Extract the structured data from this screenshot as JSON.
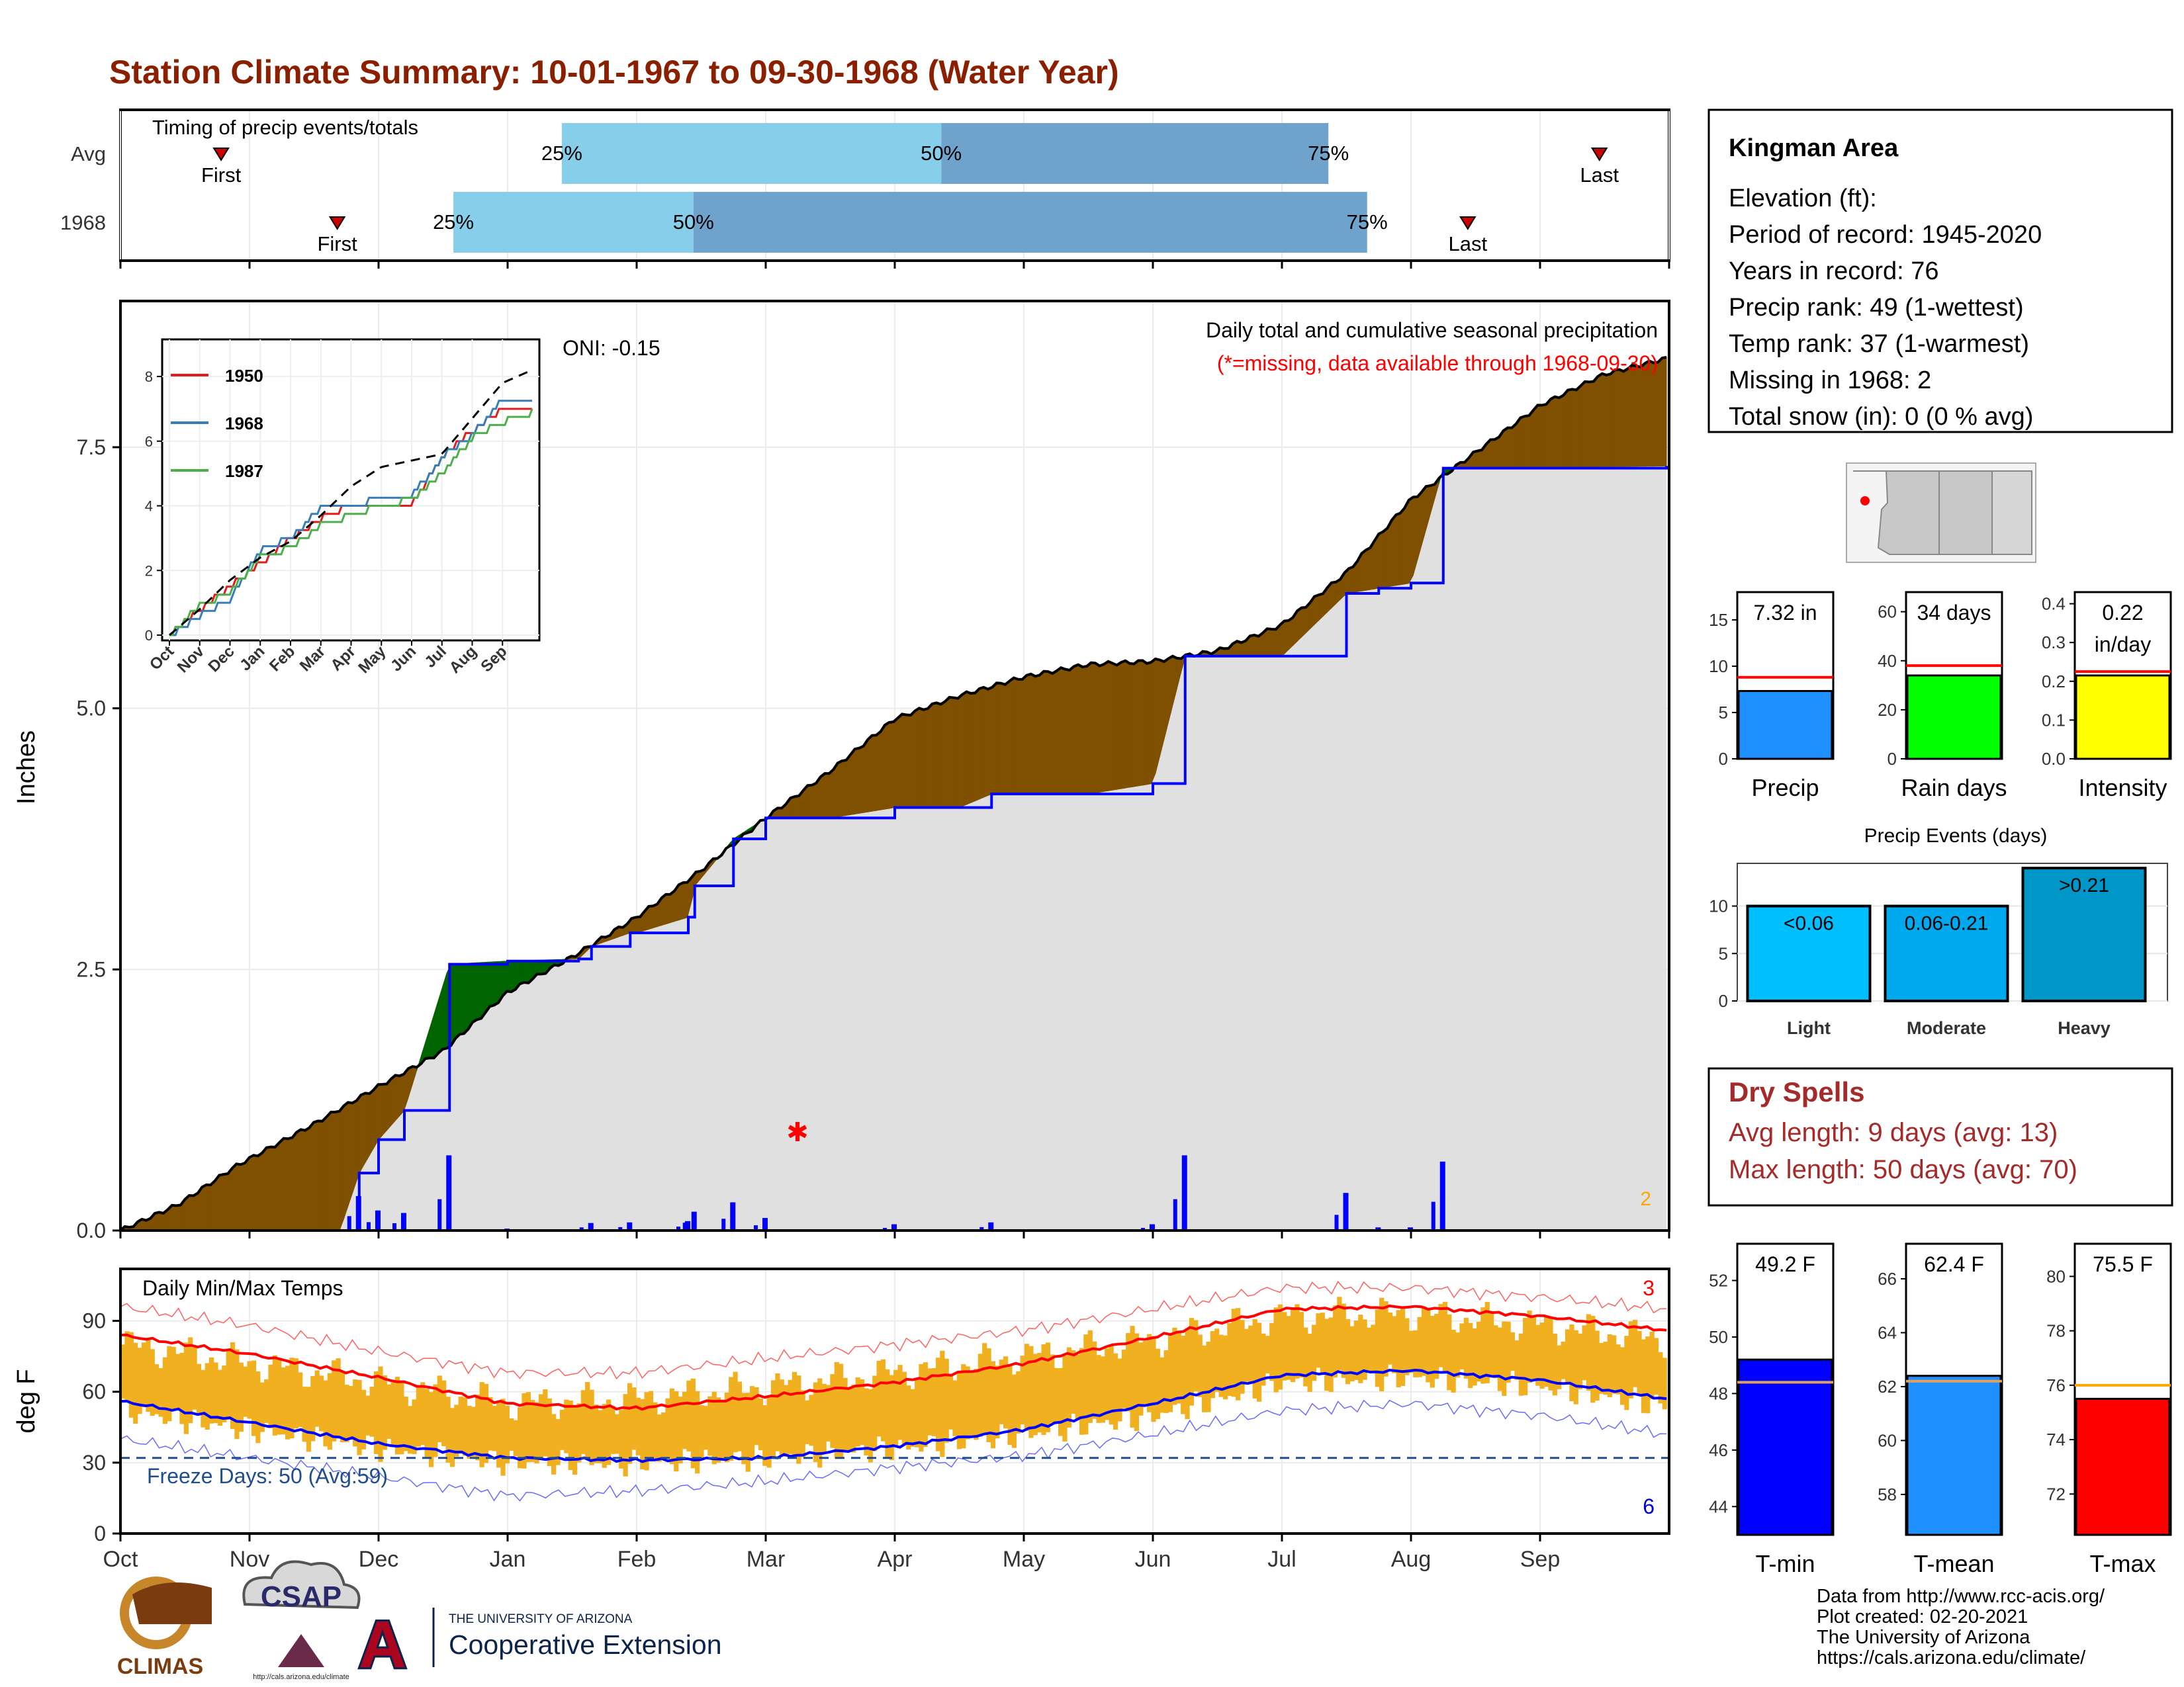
{
  "page": {
    "title": "Station Climate Summary: 10-01-1967 to 09-30-1968 (Water Year)",
    "colors": {
      "title": "#8b2000",
      "surplus": "#006400",
      "deficit": "#7f5000",
      "normal_fill": "#e0e0e0",
      "line_blue": "#0000ff",
      "bar_light": "#87ceeb",
      "bar_dark": "#6fa3cc",
      "temp_bar": "#f0b020"
    }
  },
  "months": [
    "Oct",
    "Nov",
    "Dec",
    "Jan",
    "Feb",
    "Mar",
    "Apr",
    "May",
    "Jun",
    "Jul",
    "Aug",
    "Sep"
  ],
  "timing": {
    "label": "Timing of precip events/totals",
    "rows": [
      "Avg",
      "1968"
    ],
    "first_label": "First",
    "last_label": "Last",
    "pct_labels": [
      "25%",
      "50%",
      "75%"
    ],
    "avg": {
      "first": 0.065,
      "p25": 0.285,
      "p50": 0.53,
      "p75": 0.78,
      "last": 0.955
    },
    "y1968": {
      "first": 0.14,
      "p25": 0.215,
      "p50": 0.37,
      "p75": 0.805,
      "last": 0.87
    }
  },
  "precip": {
    "title": "Daily total and cumulative seasonal precipitation",
    "note": "(*=missing, data available through 1968-09-30)",
    "oni": "ONI: -0.15",
    "ylabel": "Inches",
    "yticks": [
      "0.0",
      "2.5",
      "5.0",
      "7.5"
    ],
    "missing_count": "2"
  },
  "inset": {
    "series": [
      {
        "name": "1950",
        "color": "#e41a1c"
      },
      {
        "name": "1968",
        "color": "#377eb8"
      },
      {
        "name": "1987",
        "color": "#4daf4a"
      }
    ],
    "yticks": [
      "0",
      "2",
      "4",
      "6",
      "8"
    ],
    "xticks": [
      "Oct",
      "Nov",
      "Dec",
      "Jan",
      "Feb",
      "Mar",
      "Apr",
      "May",
      "Jun",
      "Jul",
      "Aug",
      "Sep"
    ]
  },
  "temp": {
    "title": "Daily Min/Max Temps",
    "ylabel": "deg F",
    "yticks": [
      "0",
      "30",
      "60",
      "90"
    ],
    "freeze_text": "Freeze Days: 50 (Avg:59)",
    "max_record_count": "3",
    "min_record_count": "6"
  },
  "station": {
    "name": "Kingman Area",
    "lines": [
      "Elevation (ft):",
      "Period of record: 1945-2020",
      "Years in record: 76",
      "Precip rank: 49 (1-wettest)",
      "Temp rank: 37 (1-warmest)",
      "Missing in 1968: 2",
      "Total snow (in): 0 (0 % avg)"
    ]
  },
  "summary_bars": {
    "precip": {
      "label": "Precip",
      "value_text": "7.32 in",
      "value": 7.32,
      "avg": 8.8,
      "ymax": 18,
      "yticks": [
        "0",
        "5",
        "10",
        "15"
      ],
      "color": "#1e90ff"
    },
    "rain_days": {
      "label": "Rain days",
      "value_text": "34 days",
      "value": 34,
      "avg": 38,
      "ymax": 68,
      "yticks": [
        "0",
        "20",
        "40",
        "60"
      ],
      "color": "#00ff00"
    },
    "intensity": {
      "label": "Intensity",
      "value_text": "0.22",
      "value_text2": "in/day",
      "value": 0.215,
      "avg": 0.225,
      "ymax": 0.43,
      "yticks": [
        "0.0",
        "0.1",
        "0.2",
        "0.3",
        "0.4"
      ],
      "color": "#ffff00"
    }
  },
  "events": {
    "title": "Precip Events (days)",
    "yticks": [
      "0",
      "5",
      "10"
    ],
    "ymax": 14.5,
    "bars": [
      {
        "category": "Light",
        "label": "<0.06",
        "value": 10,
        "color": "#00bfff"
      },
      {
        "category": "Moderate",
        "label": "0.06-0.21",
        "value": 10,
        "color": "#00a8ee"
      },
      {
        "category": "Heavy",
        "label": ">0.21",
        "value": 14,
        "color": "#0096c8"
      }
    ]
  },
  "dry_spells": {
    "title": "Dry Spells",
    "avg_line": "Avg length: 9 days (avg: 13)",
    "max_line": "Max length: 50 days (avg: 70)"
  },
  "temp_bars": {
    "tmin": {
      "label": "T-min",
      "value_text": "49.2 F",
      "value": 49.2,
      "avg": 48.4,
      "ymin": 43,
      "ymax": 53.3,
      "yticks": [
        "44",
        "46",
        "48",
        "50",
        "52"
      ],
      "color": "#0000ff"
    },
    "tmean": {
      "label": "T-mean",
      "value_text": "62.4 F",
      "value": 62.4,
      "avg": 62.2,
      "ymin": 56.5,
      "ymax": 67.3,
      "yticks": [
        "58",
        "60",
        "62",
        "64",
        "66"
      ],
      "color": "#1e90ff"
    },
    "tmax": {
      "label": "T-max",
      "value_text": "75.5 F",
      "value": 75.5,
      "avg": 76.0,
      "ymin": 70.5,
      "ymax": 81.2,
      "yticks": [
        "72",
        "74",
        "76",
        "78",
        "80"
      ],
      "color": "#ff0000"
    }
  },
  "footer": {
    "lines": [
      "Data from http://www.rcc-acis.org/",
      "Plot created: 02-20-2021",
      "The University of Arizona",
      "https://cals.arizona.edu/climate/"
    ],
    "logo_climas": "CLIMAS",
    "logo_csap": "CSAP",
    "logo_csap_url": "http://cals.arizona.edu/climate",
    "logo_ua_small": "THE UNIVERSITY OF ARIZONA",
    "logo_ua_big": "Cooperative Extension",
    "logo_ua_letter": "A"
  },
  "chart_data": [
    {
      "type": "area",
      "title": "Daily total and cumulative seasonal precipitation",
      "ylabel": "Inches",
      "ylim": [
        0,
        8.9
      ],
      "x_unit": "month",
      "series": [
        {
          "name": "",
          "x": [
            0,
            0.45,
            0.9,
            1.5,
            2.0,
            2.5,
            3.0,
            3.5,
            4.0,
            4.5,
            5.0,
            5.5,
            6.0,
            6.5,
            7.0,
            7.5,
            8.0,
            8.5,
            9.0,
            9.5,
            10.0,
            10.5,
            11.0,
            11.5,
            11.98
          ],
          "values": [
            0,
            0.25,
            0.62,
            1.02,
            1.38,
            1.72,
            2.28,
            2.62,
            3.0,
            3.45,
            3.95,
            4.4,
            4.9,
            5.12,
            5.3,
            5.42,
            5.45,
            5.55,
            5.8,
            6.3,
            7.0,
            7.45,
            7.9,
            8.2,
            8.35
          ]
        },
        {
          "name": "",
          "x": [
            0,
            1.7,
            1.85,
            2.0,
            2.2,
            2.55,
            3.0,
            3.55,
            3.65,
            3.95,
            4.0,
            4.4,
            4.45,
            4.75,
            5.0,
            5.5,
            6.0,
            6.5,
            6.75,
            7.0,
            7.25,
            7.5,
            8.0,
            8.25,
            8.5,
            8.75,
            9.0,
            9.5,
            9.75,
            10.0,
            10.25,
            11.98
          ],
          "values": [
            0,
            0,
            0.55,
            0.87,
            1.15,
            2.55,
            2.58,
            2.6,
            2.72,
            2.85,
            2.85,
            3.0,
            3.3,
            3.75,
            3.95,
            3.95,
            4.05,
            4.05,
            4.18,
            4.18,
            4.18,
            4.18,
            4.28,
            5.5,
            5.5,
            5.5,
            5.5,
            6.1,
            6.15,
            6.2,
            7.3,
            7.32
          ]
        }
      ]
    },
    {
      "type": "line",
      "title": "",
      "x": [
        0,
        1,
        2,
        3,
        4,
        5,
        6,
        7,
        8,
        9,
        10,
        11,
        11.98
      ],
      "series": [
        {
          "name": "1950",
          "values": [
            0,
            0.8,
            1.5,
            2.2,
            3.0,
            3.6,
            4.0,
            4.05,
            4.05,
            5.5,
            6.3,
            7.0,
            7.1
          ]
        },
        {
          "name": "1968",
          "values": [
            0,
            0.6,
            1.1,
            2.6,
            3.0,
            3.95,
            4.05,
            4.18,
            4.28,
            5.5,
            6.2,
            7.3,
            7.32
          ]
        },
        {
          "name": "1987",
          "values": [
            0,
            0.9,
            1.3,
            2.4,
            2.7,
            3.4,
            3.7,
            4.0,
            4.2,
            5.0,
            6.1,
            6.6,
            6.9
          ]
        },
        {
          "name": "",
          "values": [
            0,
            0.8,
            1.7,
            2.4,
            2.9,
            3.7,
            4.6,
            5.2,
            5.4,
            5.6,
            6.7,
            7.8,
            8.2
          ]
        }
      ]
    },
    {
      "type": "line",
      "title": "Daily Min/Max Temps",
      "ylabel": "deg F",
      "ylim": [
        0,
        112
      ],
      "x": [
        0,
        1,
        2,
        3,
        4,
        5,
        6,
        7,
        8,
        9,
        10,
        11,
        11.98
      ],
      "series": [
        {
          "name": "",
          "values": [
            84,
            76,
            66,
            55,
            53,
            58,
            64,
            72,
            83,
            95,
            96,
            92,
            86
          ]
        },
        {
          "name": "",
          "values": [
            56,
            47,
            38,
            32,
            31,
            32,
            37,
            44,
            55,
            67,
            69,
            65,
            57
          ]
        },
        {
          "name": "",
          "values": [
            96,
            88,
            77,
            68,
            68,
            74,
            80,
            86,
            95,
            104,
            104,
            100,
            95
          ]
        },
        {
          "name": "",
          "values": [
            40,
            32,
            24,
            16,
            18,
            22,
            28,
            33,
            42,
            52,
            55,
            50,
            42
          ]
        },
        {
          "name": "",
          "values": [
            80,
            72,
            64,
            55,
            57,
            62,
            68,
            75,
            82,
            92,
            93,
            88,
            82
          ]
        },
        {
          "name": "",
          "values": [
            52,
            44,
            36,
            30,
            30,
            32,
            36,
            42,
            50,
            64,
            66,
            62,
            54
          ]
        }
      ]
    },
    {
      "type": "bar",
      "title": "Precip Events (days)",
      "categories": [
        "Light",
        "Moderate",
        "Heavy"
      ],
      "values": [
        10,
        10,
        14
      ]
    }
  ]
}
